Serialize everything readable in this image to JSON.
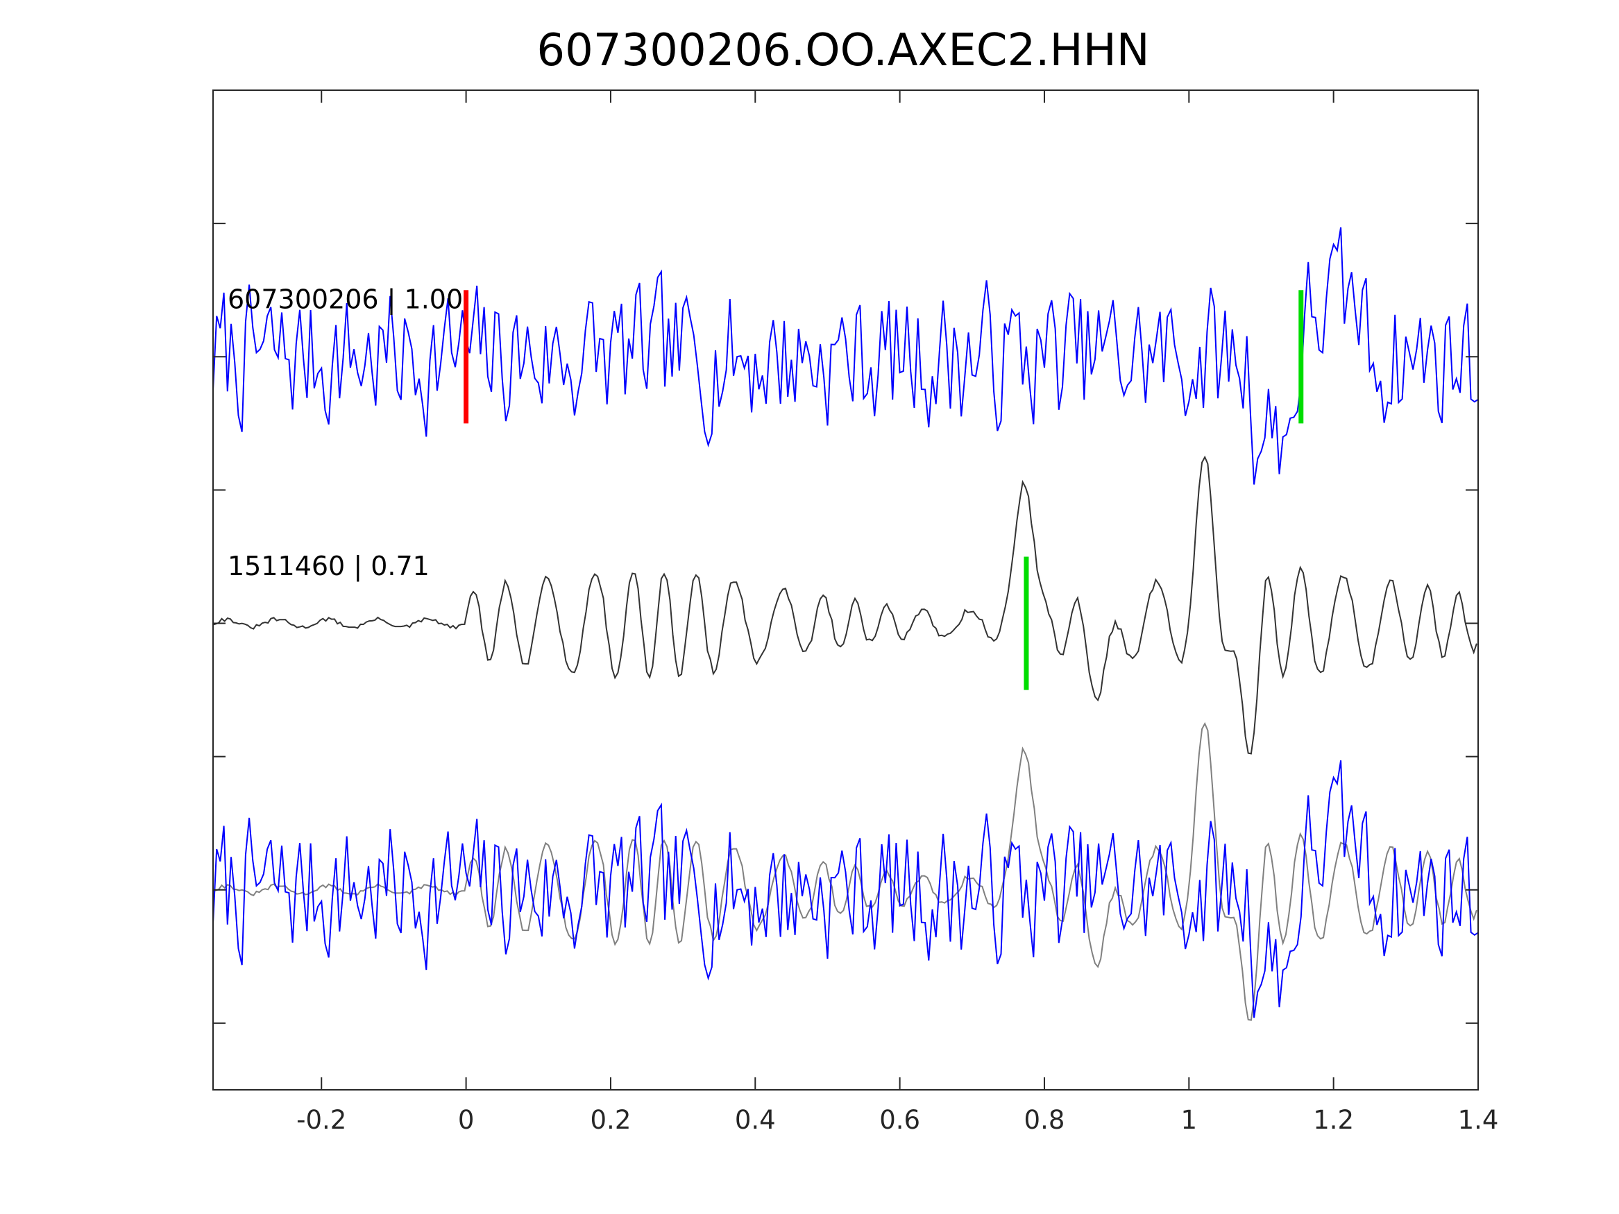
{
  "chart_data": {
    "type": "line",
    "title": "607300206.OO.AXEC2.HHN",
    "xlabel": "",
    "ylabel": "",
    "xlim": [
      -0.35,
      1.4
    ],
    "xticks": [
      -0.2,
      0,
      0.2,
      0.4,
      0.6,
      0.8,
      1,
      1.2,
      1.4
    ],
    "xtick_labels": [
      "-0.2",
      "0",
      "0.2",
      "0.4",
      "0.6",
      "0.8",
      "1",
      "1.2",
      "1.4"
    ],
    "ylim": [
      -3.5,
      4
    ],
    "yticks": [
      -3,
      -2,
      -1,
      0,
      1,
      2,
      3
    ],
    "grid": false,
    "traces": [
      {
        "label": "607300206 | 1.00",
        "color": "#0000ff",
        "baseline": 2,
        "markers": [
          {
            "x": 0.0,
            "color": "#ff0000"
          },
          {
            "x": 1.155,
            "color": "#00dd00"
          }
        ]
      },
      {
        "label": "1511460 | 0.71",
        "color": "#333333",
        "baseline": 0,
        "markers": [
          {
            "x": 0.775,
            "color": "#00dd00"
          }
        ]
      },
      {
        "label": "",
        "color": "#0000ff",
        "baseline": -2,
        "overlay_color": "#808080",
        "markers": []
      }
    ]
  }
}
